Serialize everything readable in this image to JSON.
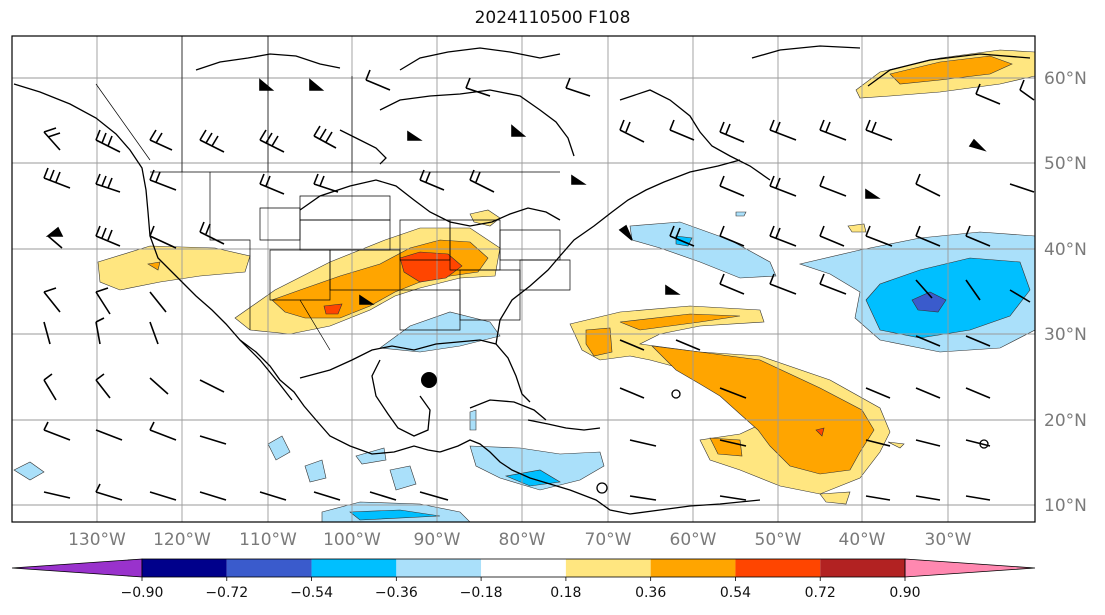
{
  "title": "2024110500 F108",
  "lon_labels": [
    "130°W",
    "120°W",
    "110°W",
    "100°W",
    "90°W",
    "80°W",
    "70°W",
    "60°W",
    "50°W",
    "40°W",
    "30°W"
  ],
  "lat_labels": [
    "60°N",
    "50°N",
    "40°N",
    "30°N",
    "20°N",
    "10°N"
  ],
  "colorbar": {
    "colors": [
      "#9932cc",
      "#00008b",
      "#3a5bcc",
      "#00bfff",
      "#aae0fa",
      "#ffffff",
      "#ffe680",
      "#ffa500",
      "#ff4500",
      "#b22222",
      "#ff88b0"
    ],
    "ticks": [
      "−0.90",
      "−0.72",
      "−0.54",
      "−0.36",
      "−0.18",
      "0.18",
      "0.36",
      "0.54",
      "0.72",
      "0.90"
    ]
  },
  "marker": {
    "symbol": "filled-circle",
    "color": "#000000"
  }
}
